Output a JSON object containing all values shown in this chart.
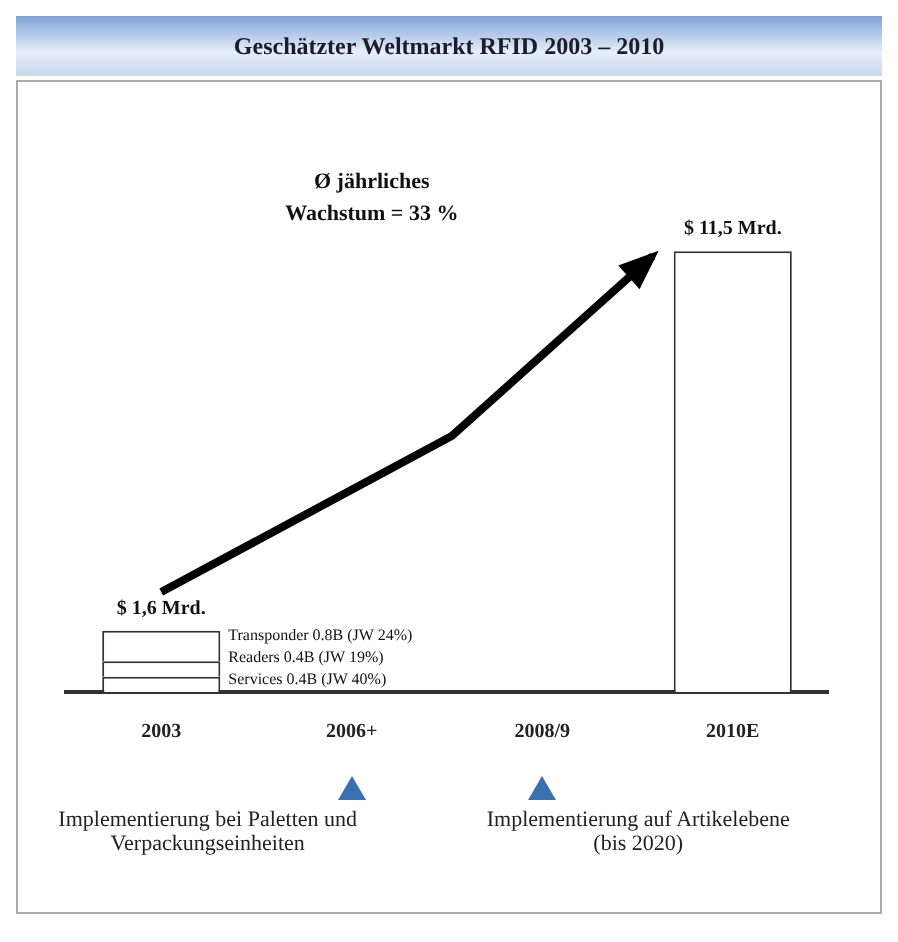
{
  "chart_data": {
    "type": "bar",
    "title": "Geschätzter Weltmarkt  RFID 2003 – 2010",
    "categories": [
      "2003",
      "2006+",
      "2008/9",
      "2010E"
    ],
    "stacked": true,
    "series": [
      {
        "name": "Services",
        "color": "#ffffff",
        "values": [
          0.4,
          null,
          null,
          null
        ],
        "value_labels": [
          "0.4B",
          null,
          null,
          null
        ]
      },
      {
        "name": "Readers",
        "color": "#ffffff",
        "values": [
          0.4,
          null,
          null,
          null
        ],
        "value_labels": [
          "0.4B",
          null,
          null,
          null
        ]
      },
      {
        "name": "Transponder",
        "color": "#ffffff",
        "values": [
          0.8,
          null,
          null,
          null
        ],
        "value_labels": [
          "0.8B",
          null,
          null,
          null
        ]
      },
      {
        "color": "#ffffff",
        "values": [
          null,
          null,
          null,
          11.5
        ],
        "value_labels": [
          null,
          null,
          null,
          "$ 11,5 Mrd."
        ]
      }
    ],
    "totals": [
      "$ 1,6 Mrd.",
      null,
      null,
      null
    ],
    "annotations": [
      "Ø jährliches Wachstum = 33 %",
      "Implementierung bei Paletten und Verpackungseinheiten",
      "Implementierung auf Artikelebene (bis 2020)",
      "(JW 40%)",
      "(JW 19%)",
      "(JW 24%)"
    ],
    "grid": false,
    "legend": false
  }
}
